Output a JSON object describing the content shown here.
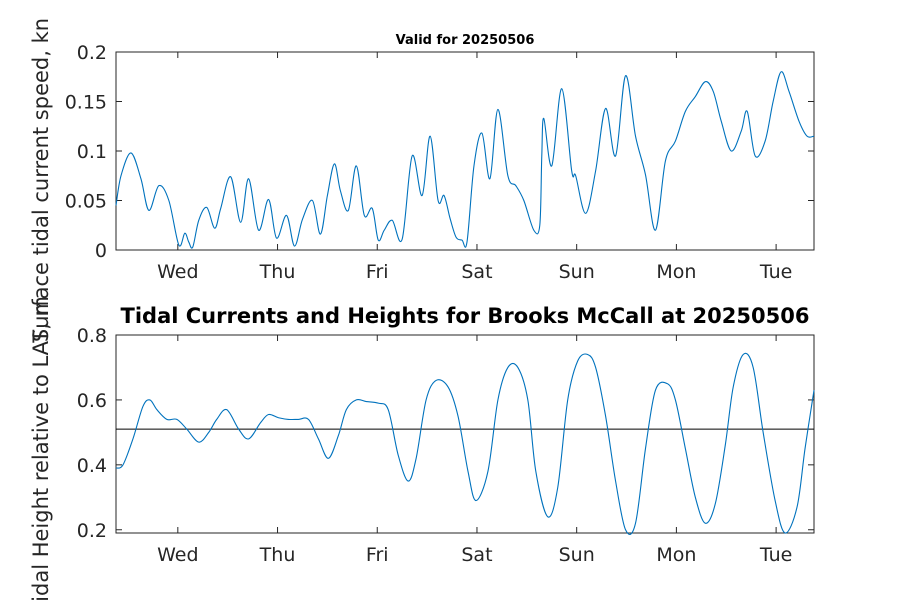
{
  "chart_data": [
    {
      "type": "line",
      "title": "Valid for 20250506",
      "xlabel": "",
      "ylabel": "Surface tidal current speed, kn",
      "x_tick_labels": [
        "Wed",
        "Thu",
        "Fri",
        "Sat",
        "Sun",
        "Mon",
        "Tue"
      ],
      "xlim_days": [
        -0.62,
        6.38
      ],
      "ylim": [
        0,
        0.2
      ],
      "yticks": [
        "0",
        "0.05",
        "0.1",
        "0.15",
        "0.2"
      ],
      "ytick_values": [
        0,
        0.05,
        0.1,
        0.15,
        0.2
      ],
      "series": [
        {
          "color": "#0072bd",
          "x_days": [
            -0.62,
            -0.57,
            -0.47,
            -0.37,
            -0.29,
            -0.19,
            -0.09,
            0.01,
            0.07,
            0.11,
            0.15,
            0.21,
            0.29,
            0.37,
            0.43,
            0.53,
            0.63,
            0.71,
            0.81,
            0.91,
            0.99,
            1.09,
            1.17,
            1.25,
            1.35,
            1.43,
            1.5,
            1.57,
            1.63,
            1.71,
            1.79,
            1.87,
            1.95,
            2.01,
            2.07,
            2.15,
            2.25,
            2.35,
            2.45,
            2.53,
            2.61,
            2.67,
            2.73,
            2.79,
            2.85,
            2.9,
            2.97,
            3.05,
            3.13,
            3.21,
            3.31,
            3.39,
            3.47,
            3.57,
            3.63,
            3.65,
            3.67,
            3.75,
            3.85,
            3.95,
            3.99,
            4.09,
            4.19,
            4.29,
            4.39,
            4.49,
            4.59,
            4.69,
            4.79,
            4.89,
            4.99,
            5.09,
            5.19,
            5.29,
            5.37,
            5.45,
            5.55,
            5.65,
            5.71,
            5.79,
            5.89,
            5.97,
            6.05,
            6.13,
            6.23,
            6.31,
            6.38
          ],
          "y": [
            0.045,
            0.075,
            0.098,
            0.072,
            0.04,
            0.065,
            0.05,
            0.005,
            0.017,
            0.008,
            0.003,
            0.03,
            0.043,
            0.022,
            0.042,
            0.074,
            0.028,
            0.072,
            0.02,
            0.051,
            0.012,
            0.035,
            0.004,
            0.031,
            0.05,
            0.016,
            0.055,
            0.087,
            0.06,
            0.04,
            0.085,
            0.035,
            0.042,
            0.01,
            0.02,
            0.03,
            0.011,
            0.095,
            0.055,
            0.115,
            0.05,
            0.055,
            0.032,
            0.013,
            0.01,
            0.008,
            0.085,
            0.118,
            0.072,
            0.142,
            0.075,
            0.065,
            0.05,
            0.02,
            0.025,
            0.095,
            0.133,
            0.085,
            0.163,
            0.08,
            0.075,
            0.037,
            0.08,
            0.143,
            0.095,
            0.176,
            0.115,
            0.076,
            0.02,
            0.09,
            0.11,
            0.14,
            0.155,
            0.17,
            0.16,
            0.13,
            0.1,
            0.12,
            0.14,
            0.095,
            0.11,
            0.15,
            0.18,
            0.16,
            0.13,
            0.115,
            0.115
          ]
        }
      ]
    },
    {
      "type": "line",
      "title": "Tidal Currents and Heights for Brooks McCall at 20250506",
      "xlabel": "",
      "ylabel": "Tidal Height relative to LAT, m",
      "x_tick_labels": [
        "Wed",
        "Thu",
        "Fri",
        "Sat",
        "Sun",
        "Mon",
        "Tue"
      ],
      "xlim_days": [
        -0.62,
        6.38
      ],
      "ylim": [
        0.19,
        0.8
      ],
      "yticks": [
        "0.2",
        "0.4",
        "0.6",
        "0.8"
      ],
      "ytick_values": [
        0.2,
        0.4,
        0.6,
        0.8
      ],
      "reference_line": 0.51,
      "series": [
        {
          "color": "#0072bd",
          "x_days": [
            -0.62,
            -0.55,
            -0.45,
            -0.35,
            -0.28,
            -0.21,
            -0.11,
            -0.01,
            0.09,
            0.21,
            0.31,
            0.39,
            0.49,
            0.61,
            0.71,
            0.83,
            0.91,
            1.01,
            1.11,
            1.21,
            1.31,
            1.41,
            1.51,
            1.61,
            1.69,
            1.79,
            1.89,
            2.01,
            2.11,
            2.21,
            2.31,
            2.39,
            2.49,
            2.59,
            2.71,
            2.81,
            2.91,
            2.99,
            3.11,
            3.21,
            3.31,
            3.41,
            3.51,
            3.59,
            3.71,
            3.81,
            3.91,
            4.01,
            4.11,
            4.19,
            4.29,
            4.39,
            4.49,
            4.59,
            4.69,
            4.79,
            4.91,
            4.99,
            5.09,
            5.19,
            5.29,
            5.39,
            5.49,
            5.57,
            5.67,
            5.77,
            5.87,
            5.99,
            6.09,
            6.21,
            6.29,
            6.38
          ],
          "y": [
            0.39,
            0.4,
            0.48,
            0.58,
            0.6,
            0.57,
            0.54,
            0.54,
            0.51,
            0.47,
            0.5,
            0.54,
            0.57,
            0.51,
            0.48,
            0.53,
            0.555,
            0.545,
            0.54,
            0.54,
            0.54,
            0.48,
            0.42,
            0.49,
            0.57,
            0.6,
            0.595,
            0.59,
            0.57,
            0.43,
            0.35,
            0.42,
            0.6,
            0.66,
            0.64,
            0.55,
            0.38,
            0.29,
            0.38,
            0.6,
            0.7,
            0.7,
            0.6,
            0.38,
            0.24,
            0.33,
            0.6,
            0.72,
            0.74,
            0.7,
            0.55,
            0.35,
            0.2,
            0.22,
            0.45,
            0.63,
            0.65,
            0.6,
            0.45,
            0.3,
            0.22,
            0.28,
            0.46,
            0.64,
            0.74,
            0.7,
            0.5,
            0.29,
            0.19,
            0.27,
            0.45,
            0.63
          ]
        }
      ]
    }
  ]
}
